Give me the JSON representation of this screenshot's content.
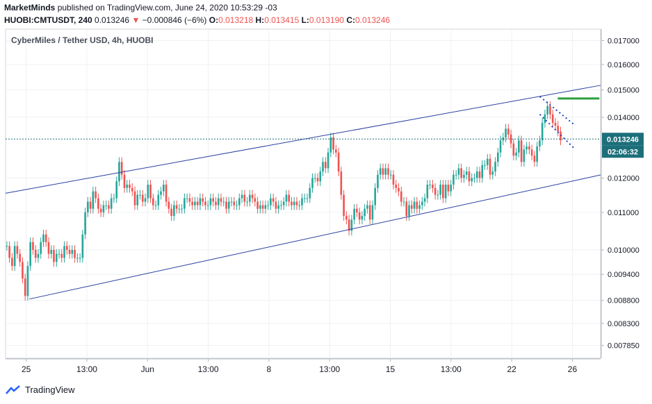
{
  "header": {
    "author": "MarketMinds",
    "published_text": "published on TradingView.com, June 24, 2020 10:53:29 -03",
    "symbol": "HUOBI:CMTUSDT, 240",
    "last_price": "0.013246",
    "change_arrow": "▼",
    "change": "−0.000846 (−6%)",
    "o_label": "O:",
    "o_value": "0.013218",
    "h_label": "H:",
    "h_value": "0.013415",
    "l_label": "L:",
    "l_value": "0.013190",
    "c_label": "C:",
    "c_value": "0.013246"
  },
  "footer": {
    "brand": "TradingView"
  },
  "colors": {
    "up": "#26a69a",
    "down": "#ef5350",
    "channel": "#2a3f9f",
    "target": "#2e9e3e",
    "price_badge": "#1c6f7a",
    "wedge": "#1f3fbf",
    "grid": "#eef0f3",
    "axis_text": "#131722"
  },
  "chart_data": {
    "type": "candlestick",
    "title": "CyberMiles / Tether USD, 4h, HUOBI",
    "scale": "log",
    "grid": true,
    "x_ticks": [
      "25",
      "13:00",
      "Jun",
      "13:00",
      "8",
      "13:00",
      "15",
      "13:00",
      "22",
      "26"
    ],
    "y_ticks": [
      "0.017000",
      "0.016000",
      "0.015000",
      "0.014000",
      "0.012000",
      "0.011000",
      "0.010000",
      "0.009400",
      "0.008800",
      "0.008300",
      "0.007850"
    ],
    "ylim": [
      0.0076,
      0.0175
    ],
    "last_price_label": "0.013246",
    "countdown_label": "02:06:32",
    "closes": [
      0.0101,
      0.0098,
      0.0096,
      0.0101,
      0.0099,
      0.0097,
      0.0093,
      0.0089,
      0.0096,
      0.0102,
      0.01,
      0.0098,
      0.0099,
      0.0102,
      0.0104,
      0.0102,
      0.0099,
      0.01,
      0.0097,
      0.0099,
      0.0099,
      0.0098,
      0.0101,
      0.01,
      0.0099,
      0.01,
      0.0098,
      0.0098,
      0.0098,
      0.0104,
      0.011,
      0.0113,
      0.0111,
      0.0116,
      0.0114,
      0.0111,
      0.011,
      0.0112,
      0.0112,
      0.0111,
      0.0114,
      0.0114,
      0.0119,
      0.0125,
      0.0121,
      0.0117,
      0.0118,
      0.0117,
      0.0116,
      0.0112,
      0.0115,
      0.0115,
      0.0113,
      0.0114,
      0.0118,
      0.0114,
      0.0112,
      0.0112,
      0.0115,
      0.0116,
      0.0118,
      0.0113,
      0.0111,
      0.0109,
      0.0112,
      0.0111,
      0.0111,
      0.0111,
      0.0114,
      0.0114,
      0.0113,
      0.0112,
      0.0113,
      0.0112,
      0.0114,
      0.0113,
      0.0112,
      0.0112,
      0.0114,
      0.0113,
      0.0112,
      0.0114,
      0.0113,
      0.0113,
      0.0111,
      0.0113,
      0.0113,
      0.0112,
      0.0112,
      0.0114,
      0.0115,
      0.0113,
      0.0113,
      0.0115,
      0.0114,
      0.0113,
      0.0111,
      0.0112,
      0.0111,
      0.0112,
      0.0112,
      0.0114,
      0.0113,
      0.0111,
      0.0112,
      0.0112,
      0.0113,
      0.0115,
      0.0113,
      0.0112,
      0.0113,
      0.0112,
      0.0112,
      0.0114,
      0.0114,
      0.0114,
      0.0117,
      0.012,
      0.012,
      0.0119,
      0.0122,
      0.0125,
      0.0123,
      0.0128,
      0.0133,
      0.0129,
      0.0128,
      0.0122,
      0.0115,
      0.0109,
      0.0108,
      0.0105,
      0.0108,
      0.0111,
      0.011,
      0.0108,
      0.0109,
      0.0111,
      0.0112,
      0.0108,
      0.0112,
      0.0117,
      0.0121,
      0.0123,
      0.0121,
      0.0123,
      0.0121,
      0.0121,
      0.0118,
      0.0117,
      0.0116,
      0.0113,
      0.0113,
      0.0109,
      0.0112,
      0.0111,
      0.0113,
      0.0111,
      0.0112,
      0.0113,
      0.0114,
      0.0118,
      0.0118,
      0.0117,
      0.0115,
      0.0115,
      0.0118,
      0.0114,
      0.0118,
      0.0116,
      0.0118,
      0.0121,
      0.0121,
      0.0123,
      0.012,
      0.0121,
      0.0122,
      0.0119,
      0.012,
      0.012,
      0.0122,
      0.012,
      0.0124,
      0.0124,
      0.0126,
      0.0121,
      0.0122,
      0.0125,
      0.0128,
      0.0132,
      0.0133,
      0.0136,
      0.0134,
      0.0131,
      0.0127,
      0.0128,
      0.0132,
      0.0125,
      0.0129,
      0.013,
      0.0129,
      0.0127,
      0.0125,
      0.013,
      0.0132,
      0.0138,
      0.0141,
      0.0144,
      0.0141,
      0.0138,
      0.0137,
      0.0135,
      0.0132
    ],
    "annotations": {
      "channel_upper": [
        [
          0.0,
          0.011546
        ],
        [
          1.0,
          0.015177
        ]
      ],
      "channel_lower": [
        [
          0.04,
          0.008829
        ],
        [
          1.0,
          0.012093
        ]
      ],
      "target_level": 0.01468,
      "last_price": 0.013246
    }
  }
}
